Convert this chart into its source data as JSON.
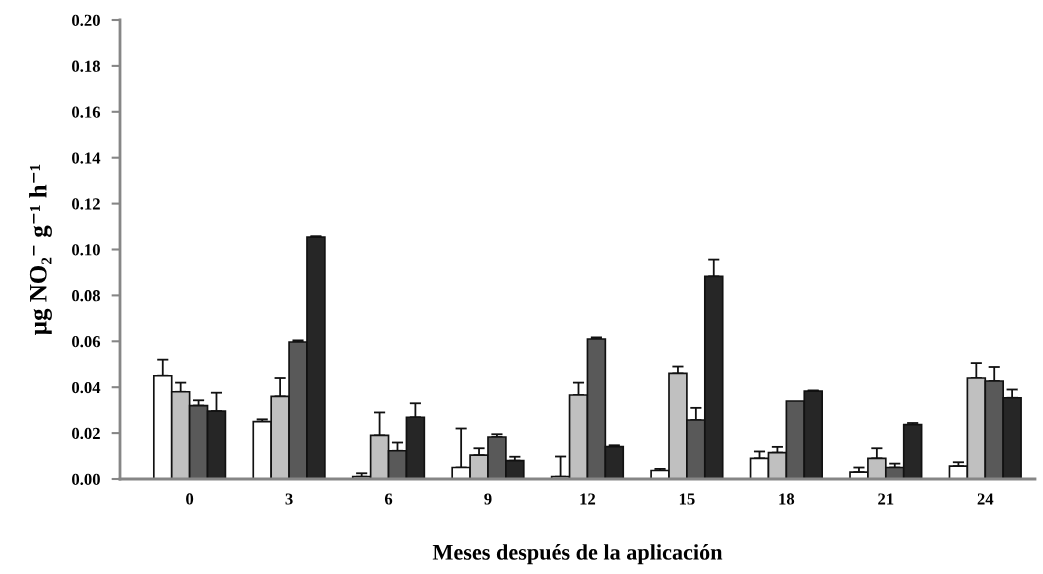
{
  "chart_data": {
    "type": "bar",
    "xlabel": "Meses después de la aplicación",
    "ylabel": "µg NO₂⁻ g⁻¹ h⁻¹",
    "categories": [
      "0",
      "3",
      "6",
      "9",
      "12",
      "15",
      "18",
      "21",
      "24"
    ],
    "series": [
      {
        "color": "#ffffff",
        "values": [
          0.045,
          0.025,
          0.001,
          0.005,
          0.001,
          0.0037,
          0.009,
          0.003,
          0.0056
        ],
        "errors": [
          [
            0.045,
            0.052
          ],
          [
            0.025,
            0.026
          ],
          [
            0.001,
            0.0025
          ],
          [
            0.005,
            0.022
          ],
          [
            0.001,
            0.0098
          ],
          [
            0.0037,
            0.0044
          ],
          [
            0.009,
            0.012
          ],
          [
            0.003,
            0.005
          ],
          [
            0.0056,
            0.0073
          ]
        ]
      },
      {
        "color": "#c0c0c0",
        "values": [
          0.038,
          0.036,
          0.019,
          0.0104,
          0.0366,
          0.046,
          0.0115,
          0.009,
          0.044
        ],
        "errors": [
          [
            0.038,
            0.042
          ],
          [
            0.036,
            0.044
          ],
          [
            0.019,
            0.029
          ],
          [
            0.0104,
            0.0134
          ],
          [
            0.0366,
            0.042
          ],
          [
            0.046,
            0.049
          ],
          [
            0.0115,
            0.014
          ],
          [
            0.009,
            0.0134
          ],
          [
            0.044,
            0.0505
          ]
        ]
      },
      {
        "color": "#595959",
        "values": [
          0.032,
          0.0597,
          0.0123,
          0.0183,
          0.061,
          0.0257,
          0.034,
          0.005,
          0.0427
        ],
        "errors": [
          [
            0.032,
            0.0343
          ],
          [
            0.0597,
            0.0604
          ],
          [
            0.0123,
            0.0159
          ],
          [
            0.0183,
            0.0195
          ],
          [
            0.061,
            0.0617
          ],
          [
            0.0257,
            0.031
          ],
          null,
          [
            0.005,
            0.0067
          ],
          [
            0.0427,
            0.0488
          ]
        ]
      },
      {
        "color": "#262626",
        "values": [
          0.0296,
          0.1054,
          0.0269,
          0.008,
          0.0141,
          0.0883,
          0.0383,
          0.0237,
          0.0354
        ],
        "errors": [
          [
            0.0296,
            0.0376
          ],
          [
            0.1054,
            0.1058
          ],
          [
            0.0269,
            0.033
          ],
          [
            0.008,
            0.0097
          ],
          [
            0.0141,
            0.0147
          ],
          [
            0.0883,
            0.0956
          ],
          [
            0.0383,
            0.0386
          ],
          [
            0.0237,
            0.0244
          ],
          [
            0.0354,
            0.039
          ]
        ]
      }
    ],
    "ylim": [
      0,
      0.2
    ],
    "yticks": [
      {
        "value": 0,
        "label": "0.00"
      },
      {
        "value": 0.02,
        "label": "0.02"
      },
      {
        "value": 0.04,
        "label": "0.04"
      },
      {
        "value": 0.06,
        "label": "0.06"
      },
      {
        "value": 0.08,
        "label": "0.08"
      },
      {
        "value": 0.1,
        "label": "0.10"
      },
      {
        "value": 0.12,
        "label": "0.12"
      },
      {
        "value": 0.14,
        "label": "0.14"
      },
      {
        "value": 0.16,
        "label": "0.16"
      },
      {
        "value": 0.18,
        "label": "0.18"
      },
      {
        "value": 0.2,
        "label": "0.20"
      }
    ]
  }
}
